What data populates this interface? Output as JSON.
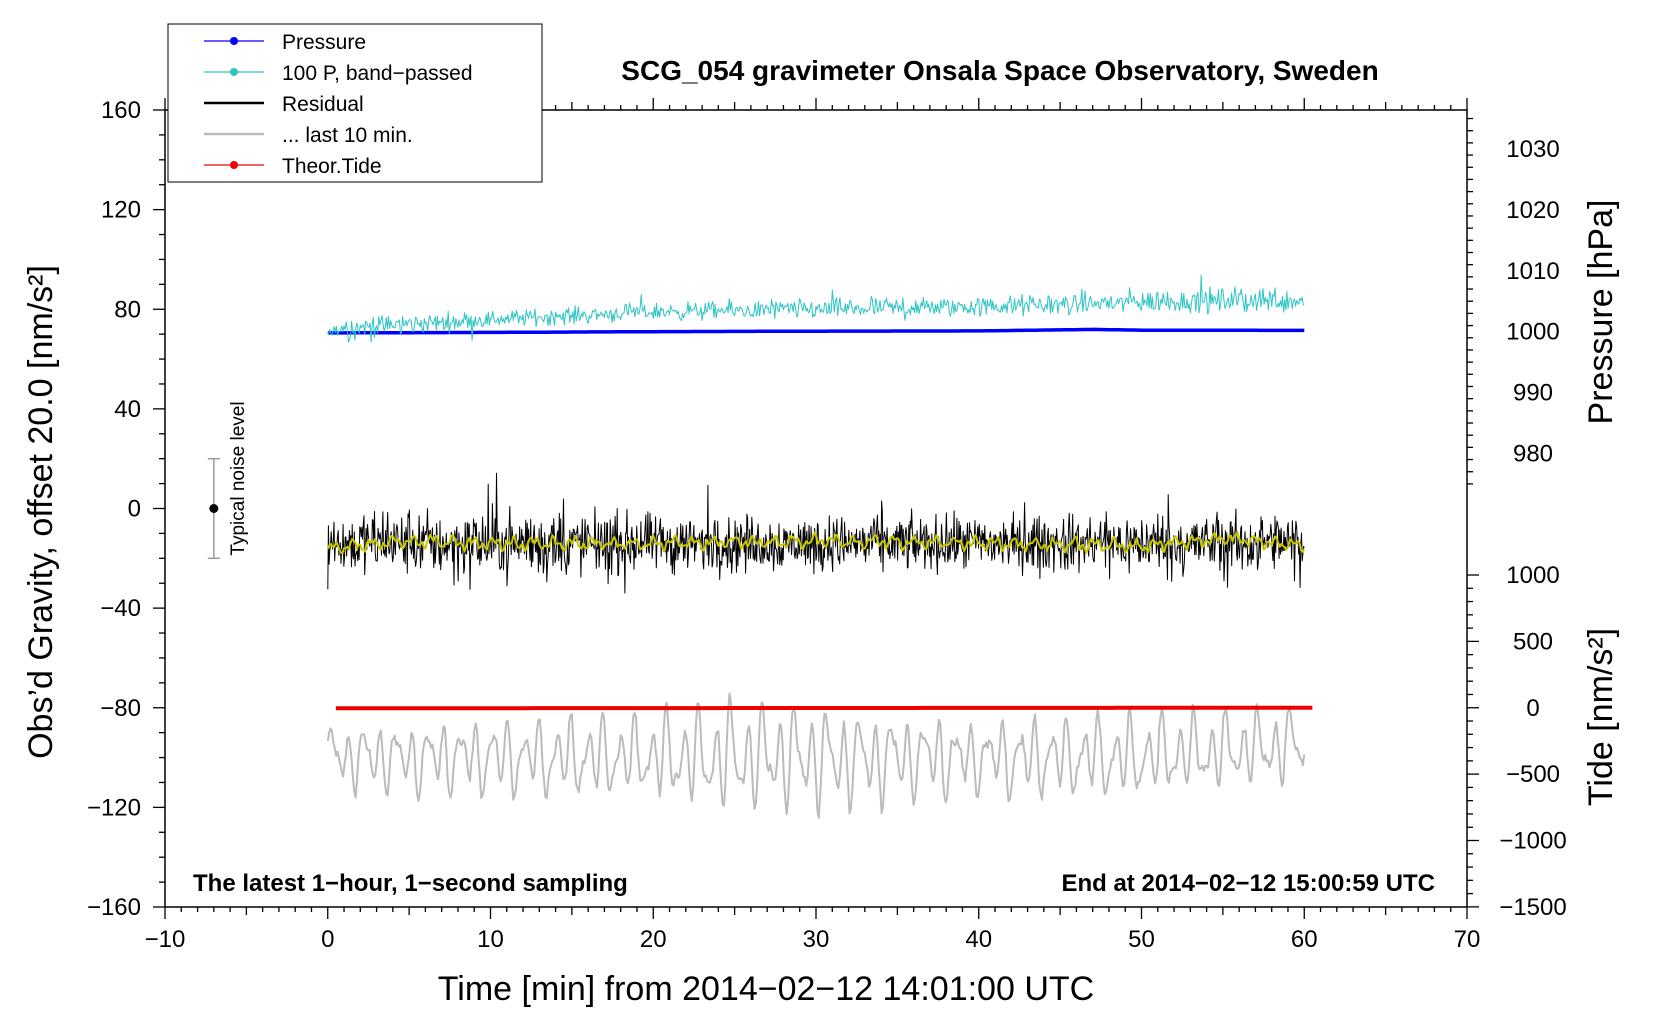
{
  "chart_data": {
    "type": "line",
    "title": "SCG_054 gravimeter Onsala Space Observatory, Sweden",
    "xlabel": "Time [min] from 2014−02−12 14:01:00 UTC",
    "ylabel_left": "Obs’d Gravity, offset 20.0 [nm/s²]",
    "ylabel_right_top": "Pressure [hPa]",
    "ylabel_right_bottom": "Tide [nm/s²]",
    "xlim": [
      -10,
      70
    ],
    "ylim": [
      -160,
      160
    ],
    "x_ticks": [
      {
        "value": -10,
        "label": "−10"
      },
      {
        "value": 0,
        "label": "0"
      },
      {
        "value": 10,
        "label": "10"
      },
      {
        "value": 20,
        "label": "20"
      },
      {
        "value": 30,
        "label": "30"
      },
      {
        "value": 40,
        "label": "40"
      },
      {
        "value": 50,
        "label": "50"
      },
      {
        "value": 60,
        "label": "60"
      },
      {
        "value": 70,
        "label": "70"
      }
    ],
    "y_ticks": [
      {
        "value": 160,
        "label": "160"
      },
      {
        "value": 120,
        "label": "120"
      },
      {
        "value": 80,
        "label": "80"
      },
      {
        "value": 40,
        "label": "40"
      },
      {
        "value": 0,
        "label": "0"
      },
      {
        "value": -40,
        "label": "−40"
      },
      {
        "value": -80,
        "label": "−80"
      },
      {
        "value": -120,
        "label": "−120"
      },
      {
        "value": -160,
        "label": "−160"
      }
    ],
    "pressure_axis": {
      "ticks": [
        {
          "value": 1030,
          "label": "1030"
        },
        {
          "value": 1020,
          "label": "1020"
        },
        {
          "value": 1010,
          "label": "1010"
        },
        {
          "value": 1000,
          "label": "1000"
        },
        {
          "value": 990,
          "label": "990"
        },
        {
          "value": 980,
          "label": "980"
        }
      ],
      "ref_hpa": 1000,
      "ref_left_value": 71,
      "left_units_per_hpa": 2.445
    },
    "tide_axis": {
      "ticks": [
        {
          "value": 1000,
          "label": "1000"
        },
        {
          "value": 500,
          "label": "500"
        },
        {
          "value": 0,
          "label": "0"
        },
        {
          "value": -500,
          "label": "−500"
        },
        {
          "value": -1000,
          "label": "−1000"
        },
        {
          "value": -1500,
          "label": "−1500"
        }
      ],
      "ref_value": 0,
      "ref_left_value": -80,
      "left_units_per_unit": 0.0533
    },
    "legend": [
      {
        "label": "Pressure",
        "color": "#0000ff",
        "marker": true,
        "width": 1
      },
      {
        "label": "100 P, band−passed",
        "color": "#2ec4c4",
        "marker": true,
        "width": 1
      },
      {
        "label": "Residual",
        "color": "#000000",
        "marker": false,
        "width": 2
      },
      {
        "label": "... last 10 min.",
        "color": "#bbbbbb",
        "marker": false,
        "width": 2
      },
      {
        "label": "Theor.Tide",
        "color": "#ee0000",
        "marker": true,
        "width": 1
      }
    ],
    "legend_placement": "top-left",
    "noise_bar": {
      "label": "Typical noise level",
      "x": -7,
      "center": 0,
      "low": -20,
      "high": 20
    },
    "note_left": "The latest 1−hour, 1−second sampling",
    "note_right": "End at 2014−02−12 15:00:59 UTC",
    "series": [
      {
        "name": "Pressure",
        "color": "#0000ff",
        "kind": "flat",
        "x": [
          0,
          10,
          20,
          30,
          40,
          47,
          50,
          60
        ],
        "values": [
          70.5,
          70.7,
          71.0,
          71.2,
          71.3,
          71.9,
          71.6,
          71.5
        ]
      },
      {
        "name": "100 P, band−passed",
        "color": "#2ec4c4",
        "kind": "noisy",
        "x": [
          0,
          10,
          20,
          30,
          40,
          50,
          60
        ],
        "values": [
          72,
          76,
          79,
          80,
          81,
          83,
          84
        ],
        "amplitude": [
          7,
          5,
          5,
          6,
          6,
          7,
          8
        ]
      },
      {
        "name": "Residual",
        "color": "#000000",
        "kind": "noisy",
        "x": [
          0,
          10,
          20,
          30,
          40,
          50,
          60
        ],
        "values": [
          -14,
          -14,
          -14,
          -14,
          -14,
          -14,
          -14
        ],
        "amplitude": [
          17,
          20,
          17,
          16,
          16,
          17,
          17
        ]
      },
      {
        "name": "Residual (smoothed)",
        "color": "#c8c800",
        "kind": "smooth",
        "x": [
          0,
          5,
          10,
          20,
          30,
          40,
          50,
          55,
          60
        ],
        "values": [
          -16,
          -13,
          -14,
          -14,
          -13,
          -14,
          -15,
          -12,
          -15
        ]
      },
      {
        "name": "... last 10 min.",
        "color": "#bbbbbb",
        "kind": "oscillating",
        "x": [
          0,
          10,
          20,
          25,
          30,
          40,
          50,
          60
        ],
        "values": [
          -100,
          -100,
          -100,
          -100,
          -100,
          -100,
          -100,
          -95
        ],
        "amplitude": [
          14,
          16,
          18,
          24,
          22,
          16,
          18,
          15
        ]
      },
      {
        "name": "Theor.Tide",
        "color": "#ee0000",
        "kind": "flat",
        "x": [
          0.5,
          60.5
        ],
        "values": [
          -80.2,
          -80.0
        ]
      }
    ]
  }
}
